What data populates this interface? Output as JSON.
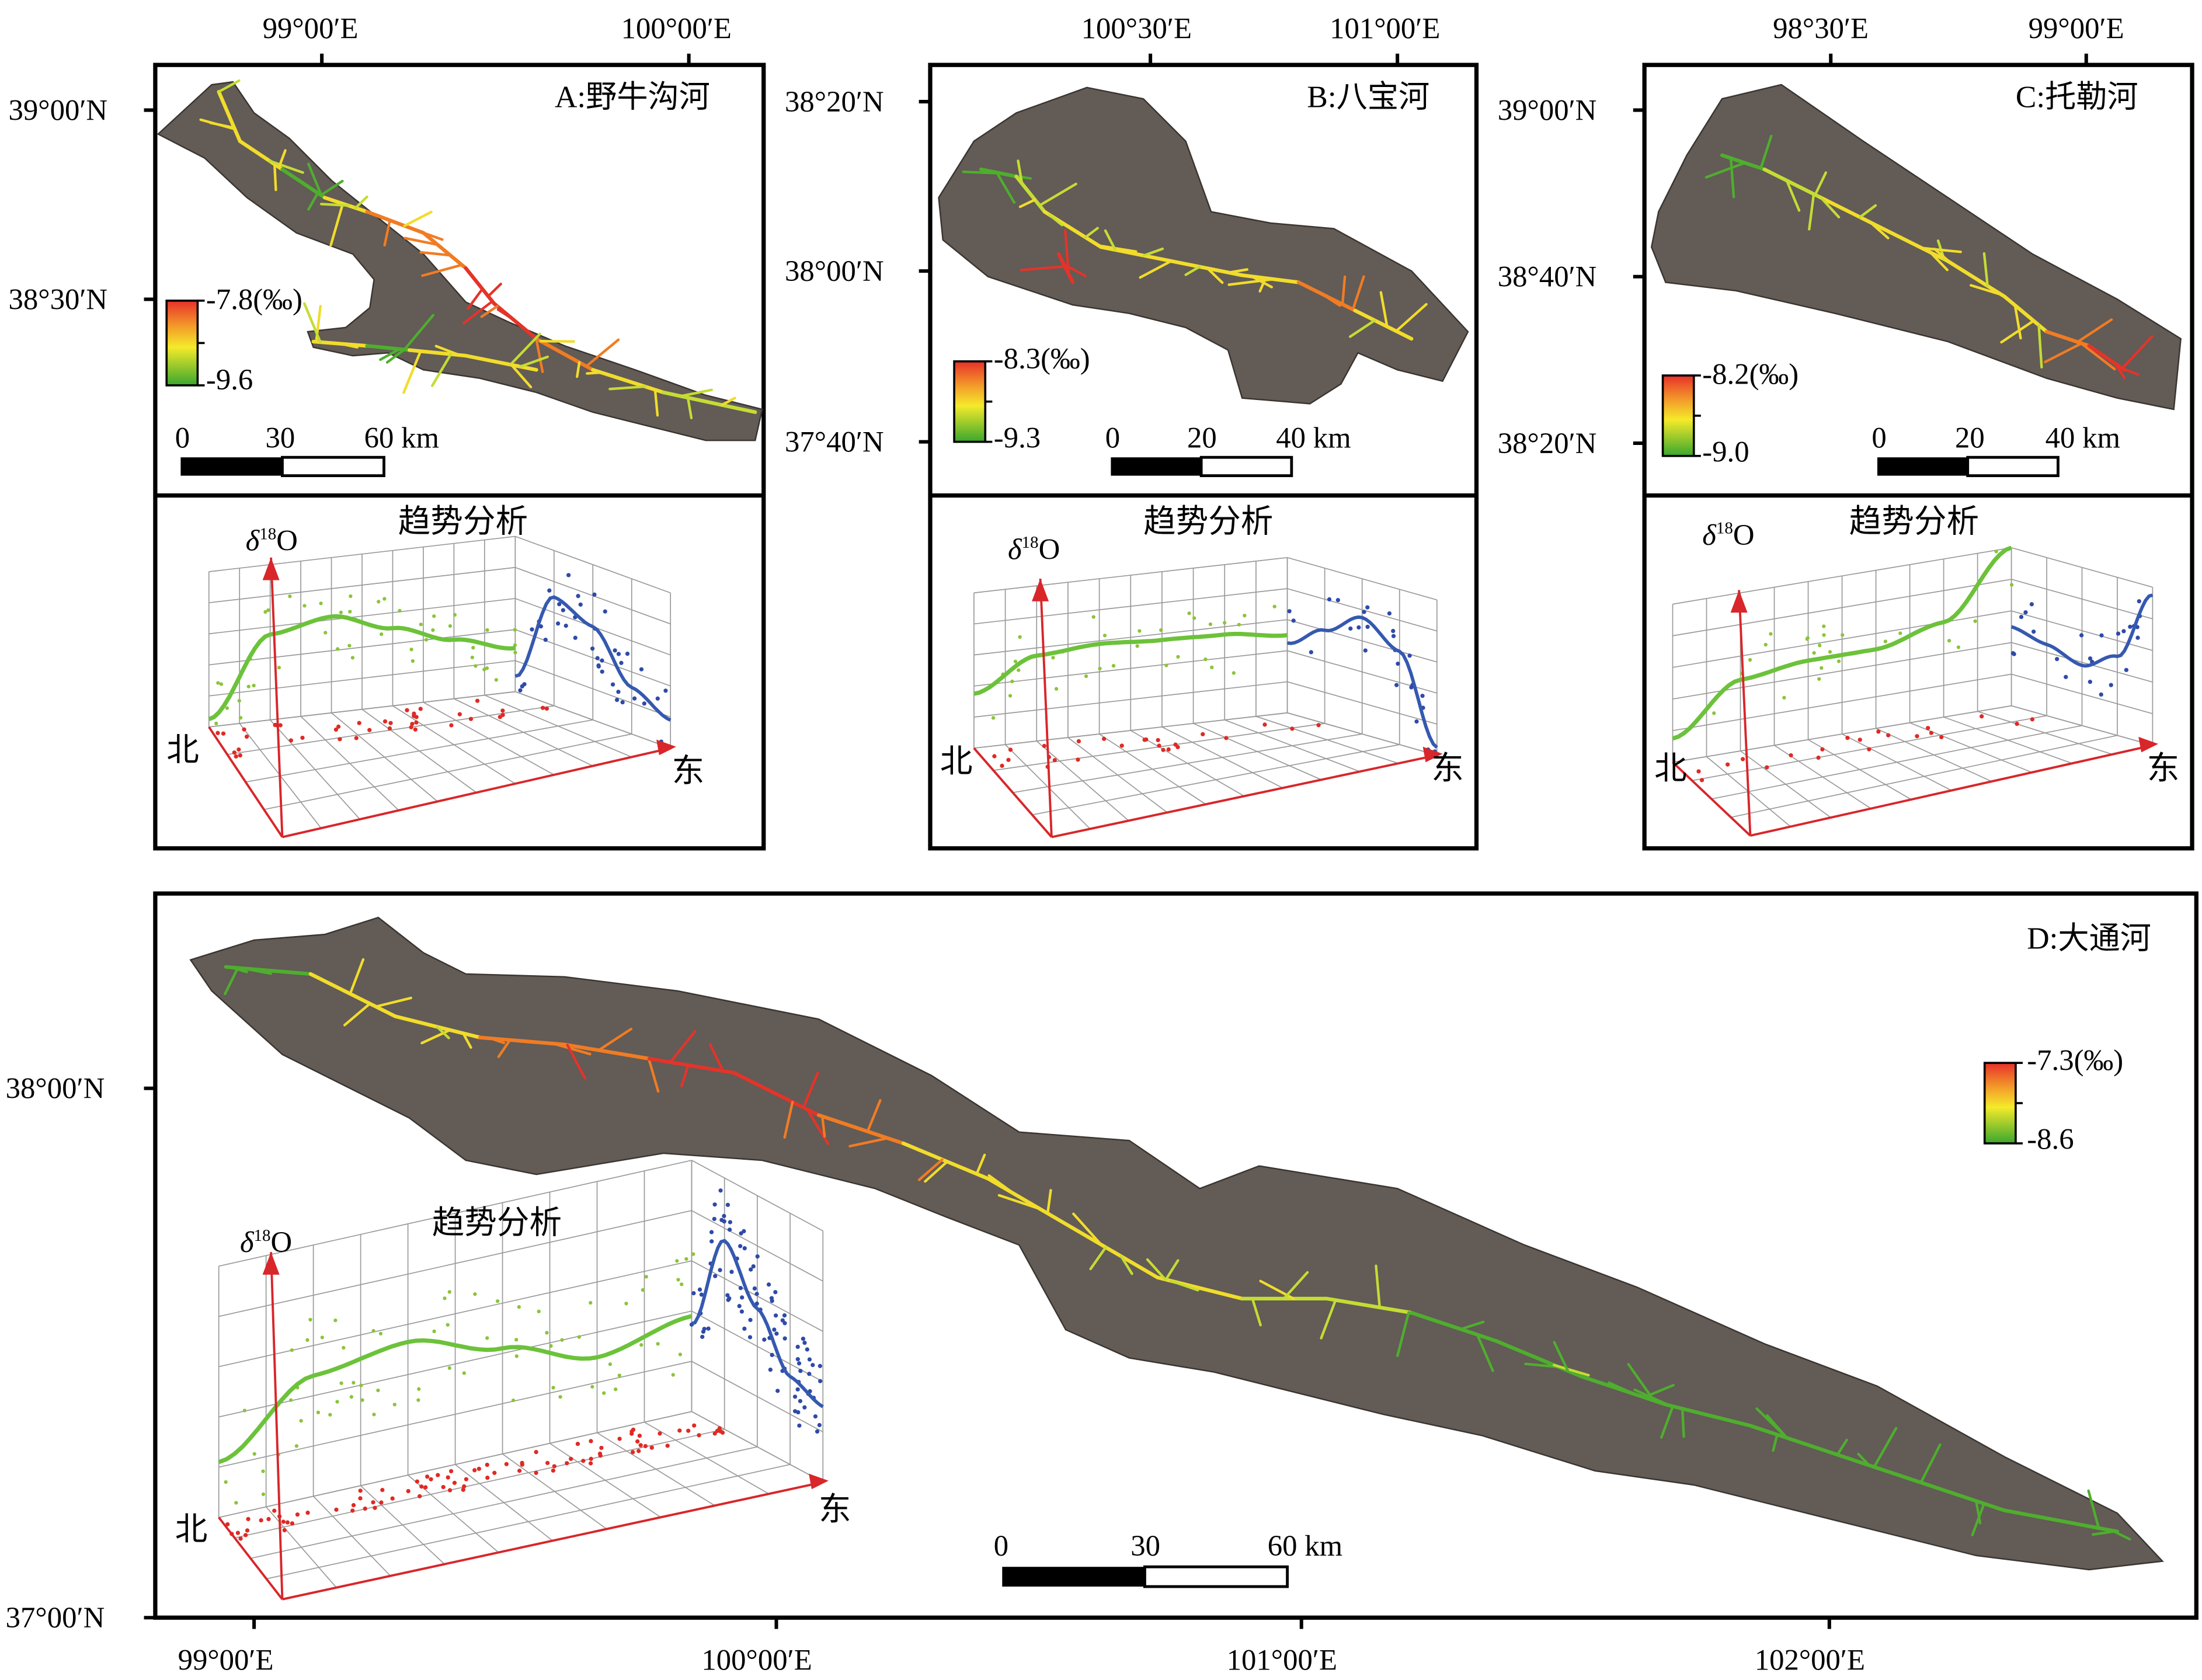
{
  "panels": {
    "A": {
      "title": "A:野牛沟河",
      "top_ticks": [
        "99°00′E",
        "100°00′E"
      ],
      "left_ticks": [
        "39°00′N",
        "38°30′N"
      ],
      "legend_max": "-7.8(‰)",
      "legend_min": "-9.6",
      "scale": [
        "0",
        "30",
        "60 km"
      ]
    },
    "B": {
      "title": "B:八宝河",
      "top_ticks": [
        "100°30′E",
        "101°00′E"
      ],
      "left_ticks": [
        "38°20′N",
        "38°00′N",
        "37°40′N"
      ],
      "legend_max": "-8.3(‰)",
      "legend_min": "-9.3",
      "scale": [
        "0",
        "20",
        "40 km"
      ]
    },
    "C": {
      "title": "C:托勒河",
      "top_ticks": [
        "98°30′E",
        "99°00′E"
      ],
      "left_ticks": [
        "39°00′N",
        "38°40′N",
        "38°20′N"
      ],
      "legend_max": "-8.2(‰)",
      "legend_min": "-9.0",
      "scale": [
        "0",
        "20",
        "40 km"
      ]
    },
    "D": {
      "title": "D:大通河",
      "bottom_ticks": [
        "99°00′E",
        "100°00′E",
        "101°00′E",
        "102°00′E"
      ],
      "left_ticks": [
        "38°00′N",
        "37°00′N"
      ],
      "legend_max": "-7.3(‰)",
      "legend_min": "-8.6",
      "scale": [
        "0",
        "30",
        "60 km"
      ]
    }
  },
  "trend": {
    "title": "趋势分析",
    "axis_symbol": "δ",
    "axis_sup": "18",
    "axis_letter": "O",
    "north": "北",
    "east": "东"
  },
  "colors": {
    "basin": "#625b56",
    "frame": "#000000",
    "legend_top": "#e8302a",
    "legend_mid": "#f5ea2a",
    "legend_bottom": "#3aa72e",
    "trend_green": "#6cc23a",
    "trend_blue": "#3559b0",
    "axis_red": "#d8262a"
  }
}
